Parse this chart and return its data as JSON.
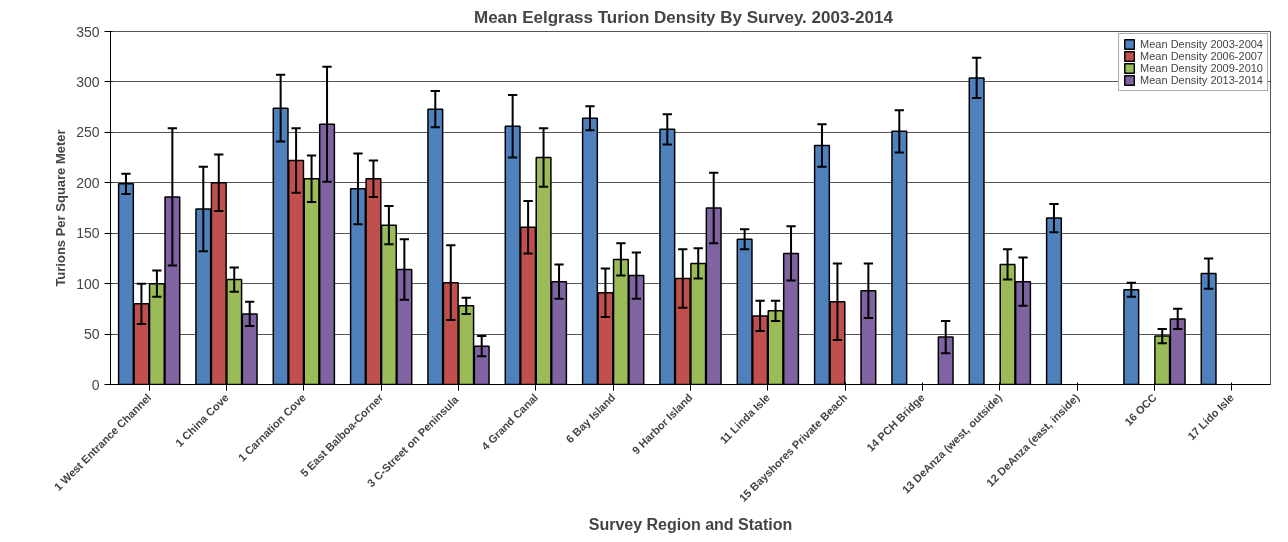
{
  "chart_data": {
    "type": "bar",
    "title": "Mean Eelgrass  Turion Density By Survey.   2003-2014",
    "xlabel": "Survey Region and Station",
    "ylabel": "Turions Per Square Meter",
    "categories": [
      "1 West Entrance Channel",
      "1 China Cove",
      "1 Carnation Cove",
      "5 East Balboa-Corner",
      "3  C-Street on Peninsula",
      "4 Grand Canal",
      "6 Bay Island",
      "9 Harbor Island",
      "11 Linda Isle",
      "15 Bayshores Private Beach",
      "14 PCH Bridge",
      "13 DeAnza (west, outside)",
      "12 DeAnza (east, inside)",
      "16 OCC",
      "17 Lido Isle"
    ],
    "series": [
      {
        "name": "Mean Density 2003-2004",
        "color": "#4f81bd",
        "values": [
          199,
          174,
          274,
          194,
          273,
          256,
          264,
          253,
          144,
          237,
          251,
          304,
          165,
          94,
          110
        ],
        "errors": [
          10,
          42,
          33,
          35,
          18,
          31,
          12,
          15,
          10,
          21,
          21,
          20,
          14,
          7,
          15
        ]
      },
      {
        "name": "Mean Density 2006-2007",
        "color": "#c0504d",
        "values": [
          80,
          200,
          222,
          204,
          101,
          156,
          91,
          105,
          68,
          82,
          null,
          null,
          null,
          null,
          null
        ],
        "errors": [
          20,
          28,
          32,
          18,
          37,
          26,
          24,
          29,
          15,
          38,
          null,
          null,
          null,
          null,
          null
        ]
      },
      {
        "name": "Mean Density 2009-2010",
        "color": "#9bbb59",
        "values": [
          100,
          104,
          204,
          158,
          78,
          225,
          124,
          120,
          73,
          null,
          null,
          119,
          null,
          48,
          null
        ],
        "errors": [
          13,
          12,
          23,
          19,
          8,
          29,
          16,
          15,
          10,
          null,
          null,
          15,
          null,
          7,
          null
        ]
      },
      {
        "name": "Mean Density 2013-2014",
        "color": "#8064a2",
        "values": [
          186,
          70,
          258,
          114,
          38,
          102,
          108,
          175,
          130,
          93,
          47,
          102,
          null,
          65,
          null
        ],
        "errors": [
          68,
          12,
          57,
          30,
          10,
          17,
          23,
          35,
          27,
          27,
          16,
          24,
          null,
          10,
          null
        ]
      }
    ],
    "ylim": [
      0,
      350
    ],
    "yticks": [
      0,
      50,
      100,
      150,
      200,
      250,
      300,
      350
    ],
    "grid": "y",
    "legend": "top right"
  }
}
